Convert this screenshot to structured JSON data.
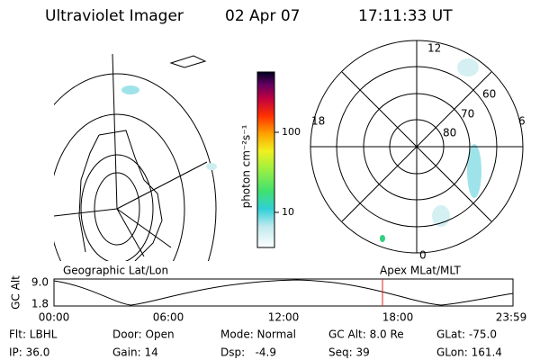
{
  "header": {
    "title": "Ultraviolet Imager",
    "date": "02 Apr 07",
    "time": "17:11:33 UT"
  },
  "colorbar": {
    "label": "photon cm⁻²s⁻¹",
    "ticks": [
      "100",
      "10"
    ]
  },
  "geographic": {
    "label": "Geographic Lat/Lon"
  },
  "polar": {
    "label": "Apex MLat/MLT",
    "mlt": [
      "12",
      "18",
      "6",
      "0"
    ],
    "mlat": [
      "60",
      "70",
      "80"
    ]
  },
  "timeline": {
    "y_label": "GC Alt",
    "y_ticks": [
      "9.0",
      "1.8"
    ],
    "x_ticks": [
      "00:00",
      "06:00",
      "12:00",
      "18:00",
      "23:59"
    ]
  },
  "footer": {
    "rows": [
      [
        "Flt: LBHL",
        "Door: Open",
        "Mode: Normal",
        "GC Alt: 8.0 Re",
        "GLat: -75.0"
      ],
      [
        "IP: 36.0",
        "Gain: 14",
        "Dsp:   -4.9",
        "Seq: 39",
        "GLon: 161.4"
      ]
    ]
  }
}
